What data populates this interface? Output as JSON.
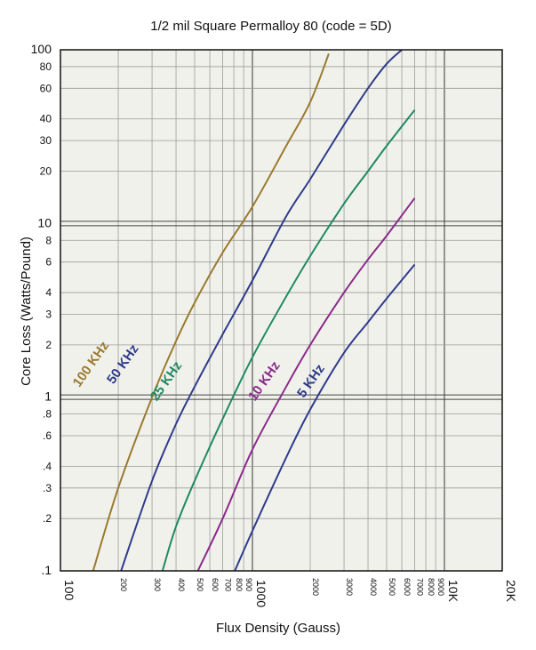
{
  "chart_data": {
    "type": "line",
    "title": "1/2 mil Square Permalloy 80 (code = 5D)",
    "xlabel": "Flux Density (Gauss)",
    "ylabel": "Core Loss (Watts/Pound)",
    "x_scale": "log",
    "y_scale": "log",
    "xlim": [
      100,
      20000
    ],
    "ylim": [
      0.1,
      100
    ],
    "grid": true,
    "plot_background": "#f1f1ec",
    "x_ticks": [
      {
        "v": 100,
        "label": "100",
        "major": true
      },
      {
        "v": 200,
        "label": "200"
      },
      {
        "v": 300,
        "label": "300"
      },
      {
        "v": 400,
        "label": "400"
      },
      {
        "v": 500,
        "label": "500"
      },
      {
        "v": 600,
        "label": "600"
      },
      {
        "v": 700,
        "label": "700"
      },
      {
        "v": 800,
        "label": "800"
      },
      {
        "v": 900,
        "label": "900"
      },
      {
        "v": 1000,
        "label": "1000",
        "major": true
      },
      {
        "v": 2000,
        "label": "2000"
      },
      {
        "v": 3000,
        "label": "3000"
      },
      {
        "v": 4000,
        "label": "4000"
      },
      {
        "v": 5000,
        "label": "5000"
      },
      {
        "v": 6000,
        "label": "6000"
      },
      {
        "v": 7000,
        "label": "7000"
      },
      {
        "v": 8000,
        "label": "8000"
      },
      {
        "v": 9000,
        "label": "9000"
      },
      {
        "v": 10000,
        "label": "10K",
        "major": true
      },
      {
        "v": 20000,
        "label": "20K",
        "major": true
      }
    ],
    "y_ticks": [
      {
        "v": 0.1,
        "label": ".1",
        "major": true
      },
      {
        "v": 0.2,
        "label": ".2"
      },
      {
        "v": 0.3,
        "label": ".3"
      },
      {
        "v": 0.4,
        "label": ".4"
      },
      {
        "v": 0.6,
        "label": ".6"
      },
      {
        "v": 0.8,
        "label": ".8"
      },
      {
        "v": 1,
        "label": "1",
        "major": true
      },
      {
        "v": 2,
        "label": "2"
      },
      {
        "v": 3,
        "label": "3"
      },
      {
        "v": 4,
        "label": "4"
      },
      {
        "v": 6,
        "label": "6"
      },
      {
        "v": 8,
        "label": "8"
      },
      {
        "v": 10,
        "label": "10",
        "major": true
      },
      {
        "v": 20,
        "label": "20"
      },
      {
        "v": 30,
        "label": "30"
      },
      {
        "v": 40,
        "label": "40"
      },
      {
        "v": 60,
        "label": "60"
      },
      {
        "v": 80,
        "label": "80"
      },
      {
        "v": 100,
        "label": "100",
        "major": true
      }
    ],
    "series": [
      {
        "name": "100 KHz",
        "color": "#9a7a2e",
        "x": [
          148,
          200,
          300,
          400,
          500,
          700,
          1000,
          1500,
          2000,
          2500
        ],
        "y": [
          0.1,
          0.3,
          1.0,
          2.1,
          3.5,
          6.8,
          12.5,
          28,
          50,
          95
        ],
        "label_at": {
          "x": 150,
          "y": 1.5
        }
      },
      {
        "name": "50 KHz",
        "color": "#2e3b8c",
        "x": [
          207,
          300,
          400,
          500,
          700,
          1000,
          1500,
          2000,
          3000,
          4000,
          5000,
          6000
        ],
        "y": [
          0.1,
          0.33,
          0.7,
          1.15,
          2.3,
          4.7,
          11,
          18,
          37,
          60,
          83,
          100
        ],
        "label_at": {
          "x": 220,
          "y": 1.5
        }
      },
      {
        "name": "25 KHz",
        "color": "#1f8a64",
        "x": [
          340,
          400,
          500,
          700,
          1000,
          1500,
          2000,
          3000,
          4000,
          5000,
          7000
        ],
        "y": [
          0.1,
          0.18,
          0.33,
          0.75,
          1.7,
          3.8,
          6.5,
          13,
          20,
          28,
          45
        ],
        "label_at": {
          "x": 370,
          "y": 1.2
        }
      },
      {
        "name": "10 KHz",
        "color": "#8a2a8a",
        "x": [
          520,
          700,
          1000,
          1500,
          2000,
          3000,
          4000,
          5000,
          7000
        ],
        "y": [
          0.1,
          0.2,
          0.5,
          1.15,
          2.0,
          4.0,
          6.2,
          8.5,
          14
        ],
        "label_at": {
          "x": 1200,
          "y": 1.2
        }
      },
      {
        "name": "5 KHz",
        "color": "#2e3b8c",
        "x": [
          810,
          1000,
          1500,
          2000,
          3000,
          4000,
          5000,
          7000
        ],
        "y": [
          0.1,
          0.17,
          0.45,
          0.85,
          1.8,
          2.7,
          3.7,
          5.8
        ],
        "label_at": {
          "x": 2100,
          "y": 1.2
        }
      }
    ]
  }
}
